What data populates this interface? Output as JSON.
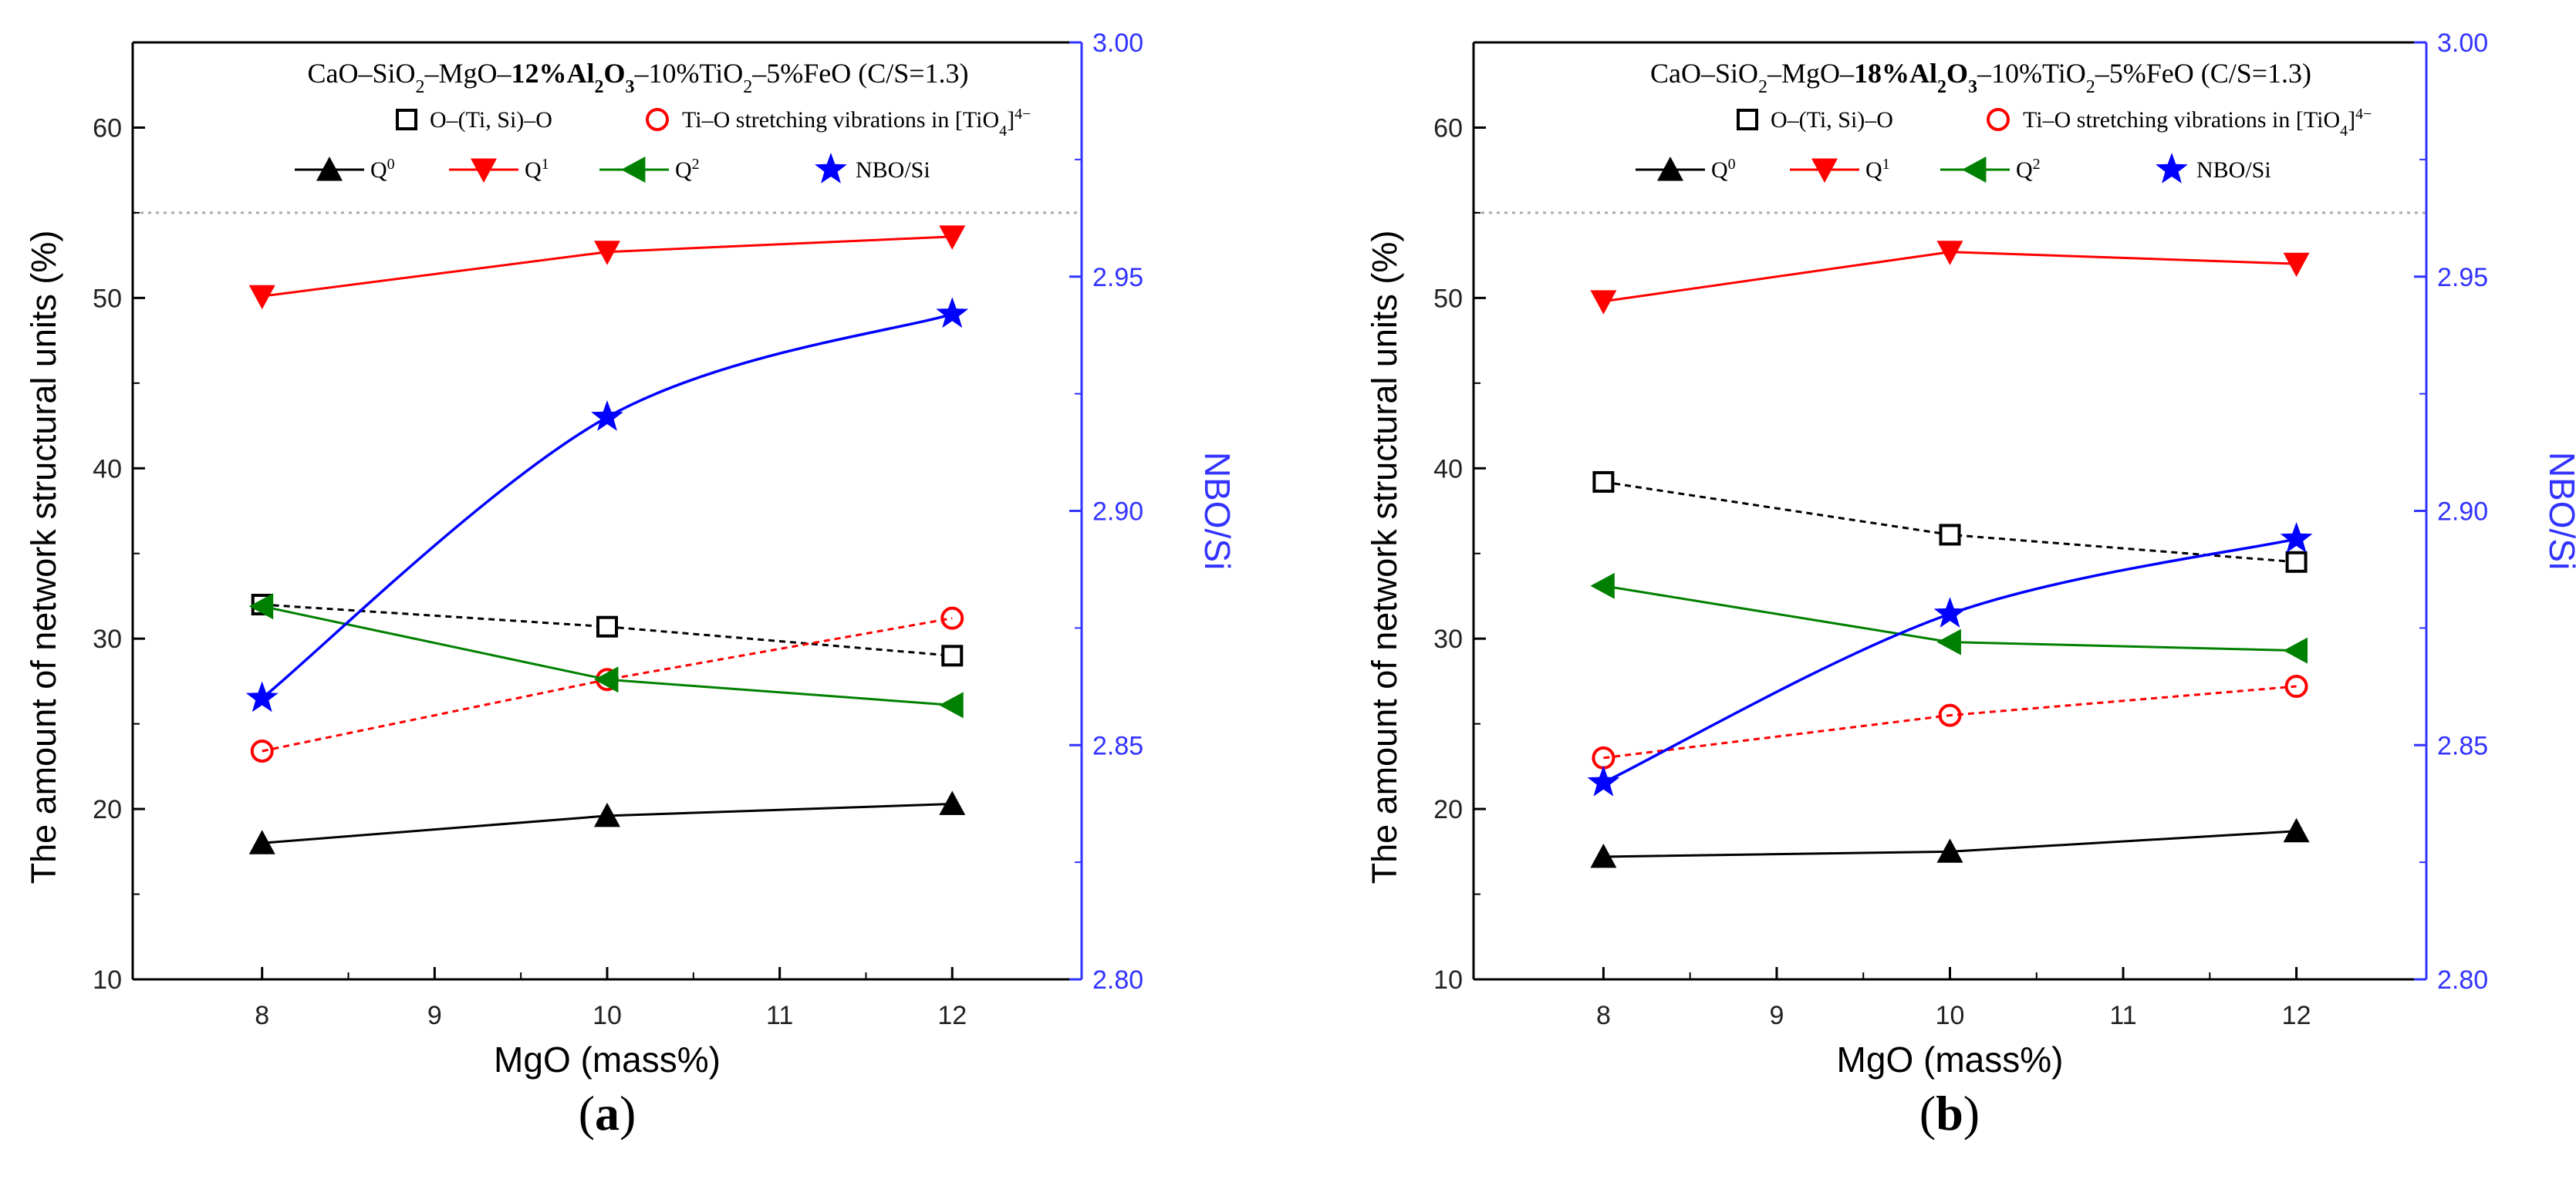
{
  "chart_data": [
    {
      "id": "a",
      "type": "line",
      "panel_label": "a",
      "title": {
        "part1": "CaO–SiO",
        "sub1": "2",
        "part2": "–MgO–",
        "bold_main": "12%Al",
        "bold_sub": "2",
        "bold_tail": "O",
        "bold_tail_sub": "3",
        "part3": "–10%TiO",
        "sub3": "2",
        "part4": "–5%FeO (C/S=1.3)"
      },
      "xlabel": "MgO (mass%)",
      "ylabel": "The amount of network structural units (%)",
      "y2label": "NBO/Si",
      "xlim": [
        7.25,
        12.75
      ],
      "ylim": [
        10,
        65
      ],
      "y2lim": [
        2.8,
        3.0
      ],
      "x_ticks": [
        8,
        9,
        10,
        11,
        12
      ],
      "y_ticks": [
        10,
        20,
        30,
        40,
        50,
        60
      ],
      "y2_ticks": [
        "2.80",
        "2.85",
        "2.90",
        "2.95",
        "3.00"
      ],
      "reference_line_y": 55,
      "legend": {
        "row1": [
          {
            "label": "O–(Ti, Si)–O"
          },
          {
            "label_main": "Ti–O stretching vibrations in [TiO",
            "label_sub": "4",
            "label_sup": "4−",
            "label_end": "]"
          }
        ],
        "row2": [
          {
            "label": "Q",
            "sup": "0"
          },
          {
            "label": "Q",
            "sup": "1"
          },
          {
            "label": "Q",
            "sup": "2"
          },
          {
            "label": "NBO/Si"
          }
        ]
      },
      "x": [
        8,
        10,
        12
      ],
      "series": [
        {
          "name": "O–(Ti, Si)–O",
          "axis": "left",
          "values": [
            32.0,
            30.7,
            29.0
          ],
          "color": "#000000",
          "marker": "open-square",
          "line": "dotted"
        },
        {
          "name": "Ti–O stretching vibrations in [TiO4]4−",
          "axis": "left",
          "values": [
            23.4,
            27.6,
            31.2
          ],
          "color": "#ff0000",
          "marker": "open-circle",
          "line": "dotted"
        },
        {
          "name": "Q0",
          "axis": "left",
          "values": [
            18.0,
            19.6,
            20.3
          ],
          "color": "#000000",
          "marker": "triangle-up",
          "line": "solid"
        },
        {
          "name": "Q1",
          "axis": "left",
          "values": [
            50.1,
            52.7,
            53.6
          ],
          "color": "#ff0000",
          "marker": "triangle-down",
          "line": "solid"
        },
        {
          "name": "Q2",
          "axis": "left",
          "values": [
            31.9,
            27.6,
            26.1
          ],
          "color": "#008000",
          "marker": "triangle-left",
          "line": "solid"
        },
        {
          "name": "NBO/Si",
          "axis": "right",
          "values": [
            2.86,
            2.92,
            2.942
          ],
          "color": "#0000ff",
          "marker": "star",
          "line": "smooth"
        }
      ]
    },
    {
      "id": "b",
      "type": "line",
      "panel_label": "b",
      "title": {
        "part1": "CaO–SiO",
        "sub1": "2",
        "part2": "–MgO–",
        "bold_main": "18%Al",
        "bold_sub": "2",
        "bold_tail": "O",
        "bold_tail_sub": "3",
        "part3": "–10%TiO",
        "sub3": "2",
        "part4": "–5%FeO (C/S=1.3)"
      },
      "xlabel": "MgO (mass%)",
      "ylabel": "The amount of network structural units (%)",
      "y2label": "NBO/Si",
      "xlim": [
        7.25,
        12.75
      ],
      "ylim": [
        10,
        65
      ],
      "y2lim": [
        2.8,
        3.0
      ],
      "x_ticks": [
        8,
        9,
        10,
        11,
        12
      ],
      "y_ticks": [
        10,
        20,
        30,
        40,
        50,
        60
      ],
      "y2_ticks": [
        "2.80",
        "2.85",
        "2.90",
        "2.95",
        "3.00"
      ],
      "reference_line_y": 55,
      "legend": {
        "row1": [
          {
            "label": "O–(Ti, Si)–O"
          },
          {
            "label_main": "Ti–O stretching vibrations in [TiO",
            "label_sub": "4",
            "label_sup": "4−",
            "label_end": "]"
          }
        ],
        "row2": [
          {
            "label": "Q",
            "sup": "0"
          },
          {
            "label": "Q",
            "sup": "1"
          },
          {
            "label": "Q",
            "sup": "2"
          },
          {
            "label": "NBO/Si"
          }
        ]
      },
      "x": [
        8,
        10,
        12
      ],
      "series": [
        {
          "name": "O–(Ti, Si)–O",
          "axis": "left",
          "values": [
            39.2,
            36.1,
            34.5
          ],
          "color": "#000000",
          "marker": "open-square",
          "line": "dotted"
        },
        {
          "name": "Ti–O stretching vibrations in [TiO4]4−",
          "axis": "left",
          "values": [
            23.0,
            25.5,
            27.2
          ],
          "color": "#ff0000",
          "marker": "open-circle",
          "line": "dotted"
        },
        {
          "name": "Q0",
          "axis": "left",
          "values": [
            17.2,
            17.5,
            18.7
          ],
          "color": "#000000",
          "marker": "triangle-up",
          "line": "solid"
        },
        {
          "name": "Q1",
          "axis": "left",
          "values": [
            49.8,
            52.7,
            52.0
          ],
          "color": "#ff0000",
          "marker": "triangle-down",
          "line": "solid"
        },
        {
          "name": "Q2",
          "axis": "left",
          "values": [
            33.1,
            29.8,
            29.3
          ],
          "color": "#008000",
          "marker": "triangle-left",
          "line": "solid"
        },
        {
          "name": "NBO/Si",
          "axis": "right",
          "values": [
            2.842,
            2.878,
            2.894
          ],
          "color": "#0000ff",
          "marker": "star",
          "line": "smooth"
        }
      ]
    }
  ],
  "colors": {
    "axis": "#000000",
    "right_axis": "#3333ff",
    "reference_line": "#aaaaaa"
  }
}
